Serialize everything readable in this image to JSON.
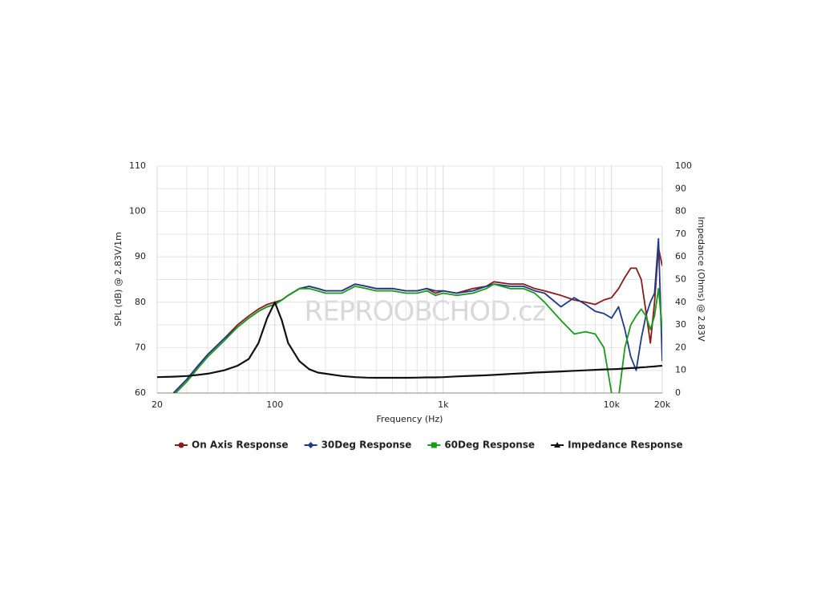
{
  "chart_data": {
    "type": "line",
    "watermark": "REPROOBCHOD.cz",
    "x_label": "Frequency (Hz)",
    "y_label": "SPL (dB) @ 2.83V/1m",
    "y2_label": "Impedance (Ohms) @ 2.83V",
    "x_log": true,
    "grid": true,
    "legend": "bottom",
    "xlim": [
      20,
      20000
    ],
    "xticks": [
      20,
      100,
      {
        "value": 1000,
        "label": "1k"
      },
      {
        "value": 10000,
        "label": "10k"
      },
      {
        "value": 20000,
        "label": "20k"
      }
    ],
    "xminorticks": [
      30,
      40,
      50,
      60,
      70,
      80,
      90,
      200,
      300,
      400,
      500,
      600,
      700,
      800,
      900,
      2000,
      3000,
      4000,
      5000,
      6000,
      7000,
      8000,
      9000
    ],
    "ylim": [
      60,
      110
    ],
    "yticks": [
      60,
      70,
      80,
      90,
      100,
      110
    ],
    "y2lim": [
      0,
      100
    ],
    "y2ticks": [
      0,
      10,
      20,
      30,
      40,
      50,
      60,
      70,
      80,
      90,
      100
    ],
    "x": [
      20,
      25,
      30,
      35,
      40,
      50,
      60,
      70,
      80,
      90,
      100,
      110,
      120,
      140,
      160,
      180,
      200,
      250,
      300,
      350,
      400,
      500,
      600,
      700,
      800,
      900,
      1000,
      1200,
      1500,
      1800,
      2000,
      2500,
      3000,
      3500,
      4000,
      5000,
      6000,
      7000,
      8000,
      9000,
      10000,
      11000,
      12000,
      13000,
      14000,
      15000,
      16000,
      17000,
      18000,
      19000,
      20000
    ],
    "series": [
      {
        "name": "On Axis Response",
        "color": "#8b1a1a",
        "marker": "circle",
        "values": [
          null,
          60,
          63,
          66,
          68.5,
          72,
          75,
          77,
          78.5,
          79.5,
          80,
          80.5,
          81.5,
          83,
          83.5,
          83,
          82.5,
          82.5,
          84,
          83.5,
          83,
          83,
          82.5,
          82.5,
          83,
          82,
          82.5,
          82,
          83,
          83.5,
          84.5,
          84,
          84,
          83,
          82.5,
          81.5,
          80.5,
          80,
          79.5,
          80.5,
          81,
          83,
          85.5,
          87.5,
          87.5,
          85,
          78,
          71,
          80,
          92,
          88
        ]
      },
      {
        "name": "30Deg Response",
        "color": "#1f3a8a",
        "marker": "diamond",
        "values": [
          null,
          60,
          63,
          66,
          68.5,
          72,
          74.5,
          76.5,
          78,
          79,
          79.5,
          80.5,
          81.5,
          83,
          83.5,
          83,
          82.5,
          82.5,
          84,
          83.5,
          83,
          83,
          82.5,
          82.5,
          83,
          82.5,
          82.5,
          82,
          82.5,
          83.5,
          84,
          83.5,
          83.5,
          82.5,
          82,
          79,
          81,
          79.5,
          78,
          77.5,
          76.5,
          79,
          74,
          68,
          65,
          72,
          77,
          80,
          82,
          94,
          67
        ]
      },
      {
        "name": "60Deg Response",
        "color": "#1a9a1a",
        "marker": "square",
        "values": [
          null,
          59.5,
          62.5,
          65.5,
          68,
          71.5,
          74.5,
          76.5,
          78,
          79,
          79.5,
          80.5,
          81.5,
          83,
          83,
          82.5,
          82,
          82,
          83.5,
          83,
          82.5,
          82.5,
          82,
          82,
          82.5,
          81.5,
          82,
          81.5,
          82,
          83,
          84,
          83,
          83,
          82,
          80,
          76,
          73,
          73.5,
          73,
          70,
          60,
          59,
          70,
          75,
          77,
          78.5,
          77,
          74,
          77,
          83,
          74
        ]
      },
      {
        "name": "Impedance Response",
        "color": "#111111",
        "marker": "triangle",
        "axis": "y2",
        "values": [
          7,
          7.2,
          7.5,
          8,
          8.5,
          10,
          12,
          15,
          22,
          33,
          40,
          32,
          22,
          14,
          10.5,
          9,
          8.5,
          7.5,
          7,
          6.8,
          6.7,
          6.7,
          6.7,
          6.8,
          6.9,
          6.9,
          7,
          7.3,
          7.6,
          7.8,
          8,
          8.4,
          8.7,
          9,
          9.2,
          9.5,
          9.8,
          10,
          10.2,
          10.4,
          10.5,
          10.6,
          10.8,
          11,
          11.1,
          11.3,
          11.4,
          11.6,
          11.7,
          11.9,
          12
        ]
      }
    ]
  }
}
